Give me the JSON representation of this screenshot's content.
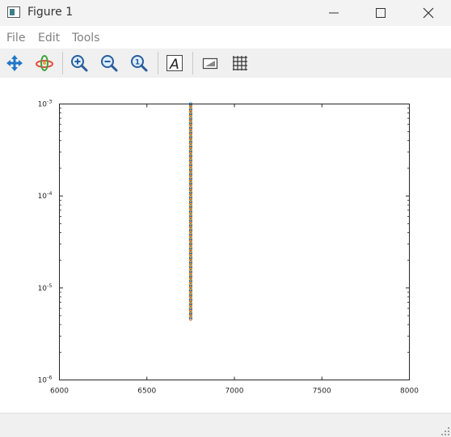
{
  "window": {
    "title": "Figure 1",
    "minimize_icon": "minimize-icon",
    "maximize_icon": "maximize-icon",
    "close_icon": "close-icon"
  },
  "menu": {
    "items": [
      {
        "label": "File"
      },
      {
        "label": "Edit"
      },
      {
        "label": "Tools"
      }
    ]
  },
  "toolbar": {
    "tools": [
      "pan-icon",
      "rotate-3d-icon",
      "zoom-in-icon",
      "zoom-out-icon",
      "restore-view-icon",
      "insert-text-icon",
      "insert-legend-icon",
      "grid-icon"
    ]
  },
  "colors": {
    "series_orange": "#d95319",
    "series_blue": "#0072bd",
    "series_yellow": "#edb120",
    "axes": "#262626"
  },
  "chart_data": {
    "type": "scatter",
    "x_ticks": [
      {
        "value": 6000,
        "label": "6000"
      },
      {
        "value": 6500,
        "label": "6500"
      },
      {
        "value": 7000,
        "label": "7000"
      },
      {
        "value": 7500,
        "label": "7500"
      },
      {
        "value": 8000,
        "label": "8000"
      }
    ],
    "y_ticks": [
      {
        "exp": -6,
        "base": "10",
        "sup": "-6"
      },
      {
        "exp": -5,
        "base": "10",
        "sup": "-5"
      },
      {
        "exp": -4,
        "base": "10",
        "sup": "-4"
      },
      {
        "exp": -3,
        "base": "10",
        "sup": "-3"
      }
    ],
    "xlim": [
      6000,
      8000
    ],
    "ylim": [
      1e-06,
      0.001
    ],
    "yscale": "log",
    "grid": false,
    "series_x": 6750,
    "y_range": [
      4.6e-06,
      0.001
    ],
    "point_count": 140
  }
}
